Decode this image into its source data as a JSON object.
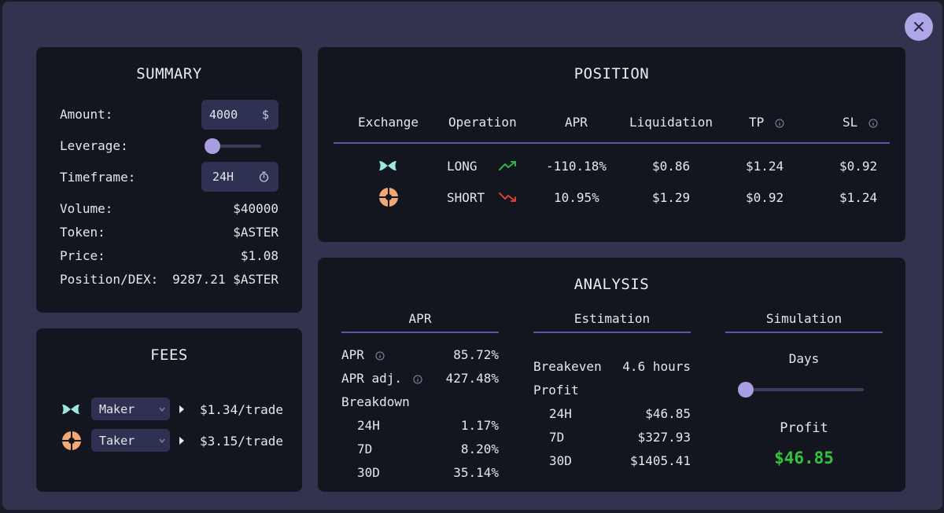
{
  "summary": {
    "title": "SUMMARY",
    "amount_label": "Amount:",
    "amount_value": "4000",
    "amount_unit": "$",
    "leverage_label": "Leverage:",
    "leverage_level": 0.05,
    "timeframe_label": "Timeframe:",
    "timeframe_value": "24H",
    "volume_label": "Volume:",
    "volume_value": "$40000",
    "token_label": "Token:",
    "token_value": "$ASTER",
    "price_label": "Price:",
    "price_value": "$1.08",
    "position_label": "Position/DEX:",
    "position_value": "9287.21 $ASTER"
  },
  "fees": {
    "title": "FEES",
    "rows": [
      {
        "icon": "bowtie-exchange-icon",
        "type": "Maker",
        "value": "$1.34/trade"
      },
      {
        "icon": "orange-exchange-icon",
        "type": "Taker",
        "value": "$3.15/trade"
      }
    ]
  },
  "position": {
    "title": "POSITION",
    "headers": {
      "exchange": "Exchange",
      "operation": "Operation",
      "apr": "APR",
      "liquidation": "Liquidation",
      "tp": "TP",
      "sl": "SL"
    },
    "rows": [
      {
        "icon": "bowtie-exchange-icon",
        "operation": "LONG",
        "trend": "up",
        "apr": "-110.18%",
        "liquidation": "$0.86",
        "tp": "$1.24",
        "sl": "$0.92"
      },
      {
        "icon": "orange-exchange-icon",
        "operation": "SHORT",
        "trend": "down",
        "apr": "10.95%",
        "liquidation": "$1.29",
        "tp": "$0.92",
        "sl": "$1.24"
      }
    ]
  },
  "analysis": {
    "title": "ANALYSIS",
    "apr": {
      "heading": "APR",
      "apr_label": "APR",
      "apr_value": "85.72%",
      "apr_adj_label": "APR adj.",
      "apr_adj_value": "427.48%",
      "breakdown_label": "Breakdown",
      "breakdown": [
        {
          "period": "24H",
          "value": "1.17%"
        },
        {
          "period": "7D",
          "value": "8.20%"
        },
        {
          "period": "30D",
          "value": "35.14%"
        }
      ]
    },
    "estimation": {
      "heading": "Estimation",
      "breakeven_label": "Breakeven",
      "breakeven_value": "4.6 hours",
      "profit_label": "Profit",
      "profit": [
        {
          "period": "24H",
          "value": "$46.85"
        },
        {
          "period": "7D",
          "value": "$327.93"
        },
        {
          "period": "30D",
          "value": "$1405.41"
        }
      ]
    },
    "simulation": {
      "heading": "Simulation",
      "days_label": "Days",
      "days_level": 0.0,
      "profit_label": "Profit",
      "profit_value": "$46.85"
    }
  },
  "colors": {
    "accent": "#a99fe0",
    "profit": "#33c43a",
    "up": "#2fb344",
    "down": "#d9412e"
  }
}
